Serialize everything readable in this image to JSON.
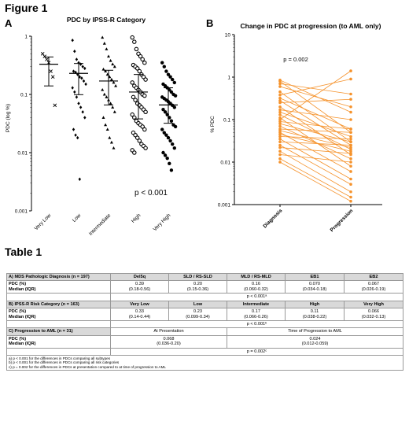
{
  "figure": {
    "title": "Figure 1",
    "panel_a_letter": "A",
    "panel_b_letter": "B",
    "table_title": "Table 1"
  },
  "chart_data": [
    {
      "type": "scatter",
      "title": "PDC by IPSS-R Category",
      "xlabel": "",
      "ylabel": "PDC (log %)",
      "yscale": "log",
      "ylim": [
        0.001,
        1
      ],
      "yticks": [
        "0.001",
        "0.01",
        "0.1",
        "1"
      ],
      "annotation": "p < 0.001",
      "categories": [
        "Very Low",
        "Low",
        "Intermediate",
        "High",
        "Very High"
      ],
      "markers": [
        "x",
        "diamond",
        "triangle",
        "circle",
        "circle-filled"
      ],
      "points": [
        [
          0.5,
          0.45,
          0.4,
          0.35,
          0.25,
          0.2,
          0.065
        ],
        [
          0.85,
          0.55,
          0.4,
          0.35,
          0.33,
          0.3,
          0.28,
          0.25,
          0.24,
          0.22,
          0.2,
          0.19,
          0.17,
          0.15,
          0.13,
          0.11,
          0.09,
          0.07,
          0.06,
          0.05,
          0.04,
          0.025,
          0.02,
          0.018,
          0.0035
        ],
        [
          0.95,
          0.75,
          0.6,
          0.45,
          0.38,
          0.33,
          0.3,
          0.27,
          0.25,
          0.22,
          0.2,
          0.18,
          0.16,
          0.14,
          0.12,
          0.1,
          0.09,
          0.08,
          0.07,
          0.06,
          0.05,
          0.04,
          0.03,
          0.025,
          0.018,
          0.015,
          0.012
        ],
        [
          0.95,
          0.8,
          0.6,
          0.5,
          0.45,
          0.4,
          0.35,
          0.32,
          0.3,
          0.28,
          0.25,
          0.22,
          0.2,
          0.18,
          0.16,
          0.14,
          0.13,
          0.12,
          0.11,
          0.1,
          0.095,
          0.09,
          0.08,
          0.07,
          0.065,
          0.06,
          0.055,
          0.05,
          0.045,
          0.04,
          0.035,
          0.032,
          0.03,
          0.028,
          0.025,
          0.022,
          0.02,
          0.018,
          0.016,
          0.014,
          0.013,
          0.012,
          0.011,
          0.01
        ],
        [
          0.35,
          0.3,
          0.25,
          0.22,
          0.2,
          0.18,
          0.16,
          0.15,
          0.14,
          0.13,
          0.12,
          0.11,
          0.1,
          0.095,
          0.09,
          0.085,
          0.08,
          0.075,
          0.07,
          0.065,
          0.06,
          0.055,
          0.05,
          0.045,
          0.04,
          0.035,
          0.03,
          0.028,
          0.025,
          0.022,
          0.02,
          0.018,
          0.016,
          0.014,
          0.012,
          0.01,
          0.009,
          0.008,
          0.0065,
          0.005
        ]
      ],
      "medians": [
        0.33,
        0.23,
        0.17,
        0.11,
        0.066
      ],
      "iqr": [
        [
          0.14,
          0.44
        ],
        [
          0.099,
          0.34
        ],
        [
          0.066,
          0.26
        ],
        [
          0.038,
          0.22
        ],
        [
          0.032,
          0.13
        ]
      ]
    },
    {
      "type": "line",
      "title": "Change in PDC at progression (to AML only)",
      "xlabel": "",
      "ylabel": "% PDC",
      "yscale": "log",
      "ylim": [
        0.001,
        10
      ],
      "yticks": [
        "0.001",
        "0.01",
        "0.1",
        "1",
        "10"
      ],
      "annotation": "p = 0.002",
      "categories": [
        "Diagnosis",
        "Progression"
      ],
      "color": "#f5922b",
      "pairs": [
        [
          0.85,
          0.15
        ],
        [
          0.8,
          0.05
        ],
        [
          0.7,
          0.4
        ],
        [
          0.6,
          0.2
        ],
        [
          0.45,
          0.03
        ],
        [
          0.38,
          0.9
        ],
        [
          0.32,
          0.06
        ],
        [
          0.28,
          0.025
        ],
        [
          0.25,
          0.3
        ],
        [
          0.2,
          0.015
        ],
        [
          0.17,
          0.1
        ],
        [
          0.15,
          0.04
        ],
        [
          0.13,
          0.02
        ],
        [
          0.11,
          0.008
        ],
        [
          0.1,
          1.4
        ],
        [
          0.09,
          0.06
        ],
        [
          0.08,
          0.03
        ],
        [
          0.07,
          0.012
        ],
        [
          0.06,
          0.05
        ],
        [
          0.055,
          0.022
        ],
        [
          0.05,
          0.006
        ],
        [
          0.045,
          0.018
        ],
        [
          0.04,
          0.035
        ],
        [
          0.035,
          0.004
        ],
        [
          0.03,
          0.025
        ],
        [
          0.025,
          0.003
        ],
        [
          0.022,
          0.016
        ],
        [
          0.018,
          0.002
        ],
        [
          0.015,
          0.01
        ],
        [
          0.012,
          0.0015
        ],
        [
          0.01,
          0.0012
        ]
      ]
    }
  ],
  "table": {
    "a_head": "A) MDS Pathologic Diagnosis (n = 197)",
    "a_cols": [
      "Del5q",
      "SLD / RS-SLD",
      "MLD / RS-MLD",
      "EB1",
      "EB2"
    ],
    "row_label_1": "PDC (%)",
    "row_label_2": "Median (IQR)",
    "a_medians": [
      "0.39",
      "0.20",
      "0.16",
      "0.070",
      "0.067"
    ],
    "a_iqr": [
      "(0.18-0.56)",
      "(0.15-0.36)",
      "(0.060-0.32)",
      "(0.034-0.18)",
      "(0.026-0.19)"
    ],
    "a_p": "p < 0.001ᵃ",
    "b_head": "B) IPSS-R Risk Category (n = 163)",
    "b_cols": [
      "Very Low",
      "Low",
      "Intermediate",
      "High",
      "Very High"
    ],
    "b_medians": [
      "0.33",
      "0.23",
      "0.17",
      "0.11",
      "0.066"
    ],
    "b_iqr": [
      "(0.14-0.44)",
      "(0.099-0.34)",
      "(0.066-0.26)",
      "(0.038-0.22)",
      "(0.032-0.13)"
    ],
    "b_p": "p < 0.001ᵇ",
    "c_head": "C) Progression to AML (n = 31)",
    "c_cols": [
      "At Presentation",
      "Time of Progression to AML"
    ],
    "c_medians": [
      "0.068",
      "0.024"
    ],
    "c_iqr": [
      "(0.036-0.20)",
      "(0.012-0.059)"
    ],
    "c_p": "p = 0.002ᶜ",
    "footnotes": [
      "a)     p < 0.001 for the differences in PDCs comparing all subtypes",
      "b)     p < 0.001 for the differences in PDCs comparing all risk categories",
      "c)     p = 0.002 for the differences in PDCs at presentation compared to at time of progression to AML"
    ]
  }
}
